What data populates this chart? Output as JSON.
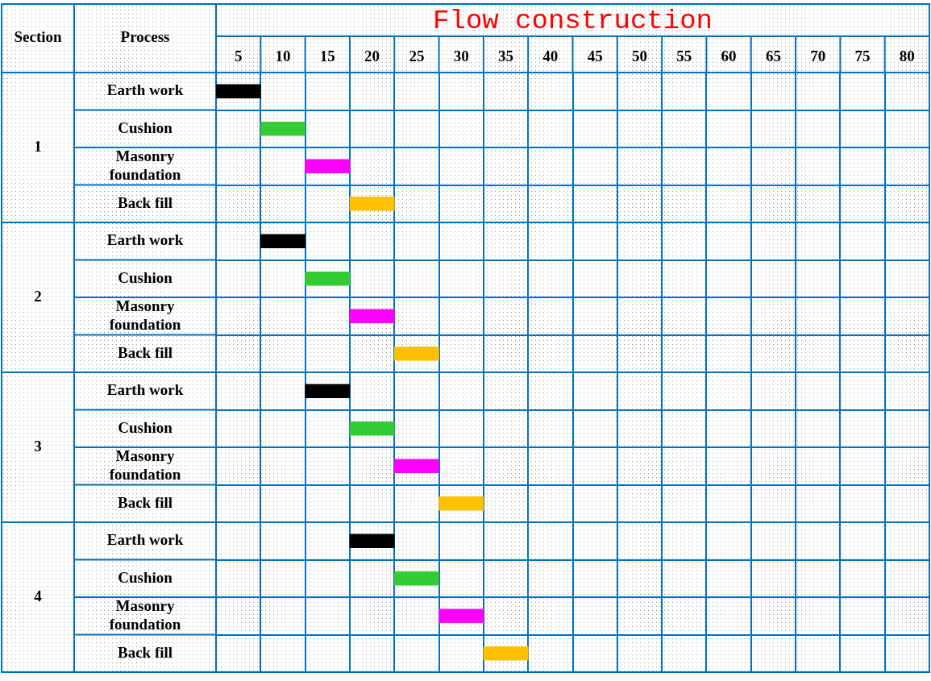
{
  "chart_data": {
    "type": "bar",
    "orientation": "horizontal",
    "title": "Flow construction",
    "ylabel": "Process",
    "y2label": "Section",
    "categories": [
      "Earth work",
      "Cushion",
      "Masonry foundation",
      "Back fill",
      "Earth work",
      "Cushion",
      "Masonry foundation",
      "Back fill",
      "Earth work",
      "Cushion",
      "Masonry foundation",
      "Back fill",
      "Earth work",
      "Cushion",
      "Masonry foundation",
      "Back fill"
    ],
    "annotations": [
      "1",
      "2",
      "3",
      "4"
    ],
    "base": [
      2.5,
      7.5,
      12.5,
      17.5,
      7.5,
      12.5,
      17.5,
      22.5,
      12.5,
      17.5,
      22.5,
      27.5,
      17.5,
      22.5,
      27.5,
      32.5
    ],
    "values": [
      5,
      5,
      5,
      5,
      5,
      5,
      5,
      5,
      5,
      5,
      5,
      5,
      5,
      5,
      5,
      5
    ],
    "colors": [
      "#000000",
      "#33cc33",
      "#ff00ff",
      "#ffc000",
      "#000000",
      "#33cc33",
      "#ff00ff",
      "#ffc000",
      "#000000",
      "#33cc33",
      "#ff00ff",
      "#ffc000",
      "#000000",
      "#33cc33",
      "#ff00ff",
      "#ffc000"
    ],
    "xlim": [
      2.5,
      82.5
    ],
    "xticks": [
      5,
      10,
      15,
      20,
      25,
      30,
      35,
      40,
      45,
      50,
      55,
      60,
      65,
      70,
      75,
      80
    ],
    "grid": true
  }
}
